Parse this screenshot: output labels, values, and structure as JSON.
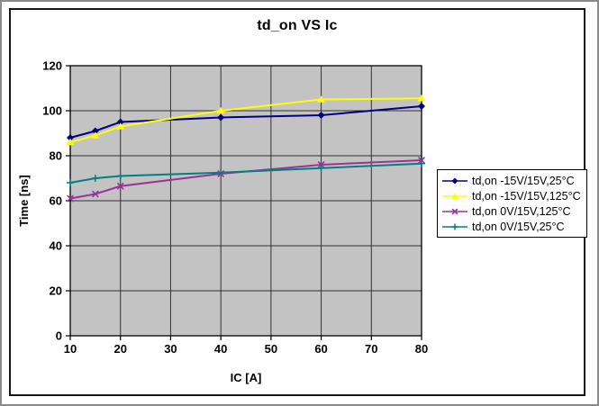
{
  "chart_data": {
    "type": "line",
    "title": "td_on VS Ic",
    "xlabel": "IC [A]",
    "ylabel": "Time [ns]",
    "x": [
      10,
      15,
      20,
      40,
      60,
      80
    ],
    "xlim": [
      10,
      80
    ],
    "ylim": [
      0,
      120
    ],
    "x_ticks": [
      10,
      20,
      30,
      40,
      50,
      60,
      70,
      80
    ],
    "y_ticks": [
      0,
      20,
      40,
      60,
      80,
      100,
      120
    ],
    "grid": true,
    "legend_position": "right",
    "plot_bg_color": "#c3c3c3",
    "gridline_color": "#333333",
    "series": [
      {
        "name": "td,on -15V/15V,25°C",
        "color": "#000080",
        "marker": "diamond",
        "values": [
          88,
          91,
          95,
          97,
          98,
          102
        ]
      },
      {
        "name": "td,on -15V/15V,125°C",
        "color": "#ffff00",
        "marker": "triangle",
        "values": [
          86,
          89,
          93,
          100,
          105,
          105.5
        ]
      },
      {
        "name": "td,on 0V/15V,125°C",
        "color": "#993399",
        "marker": "x",
        "values": [
          61,
          63,
          66.5,
          72,
          76,
          78
        ]
      },
      {
        "name": "td,on 0V/15V,25°C",
        "color": "#008080",
        "marker": "plus",
        "values": [
          68,
          70,
          71,
          72.5,
          74.5,
          76.5
        ]
      }
    ]
  }
}
